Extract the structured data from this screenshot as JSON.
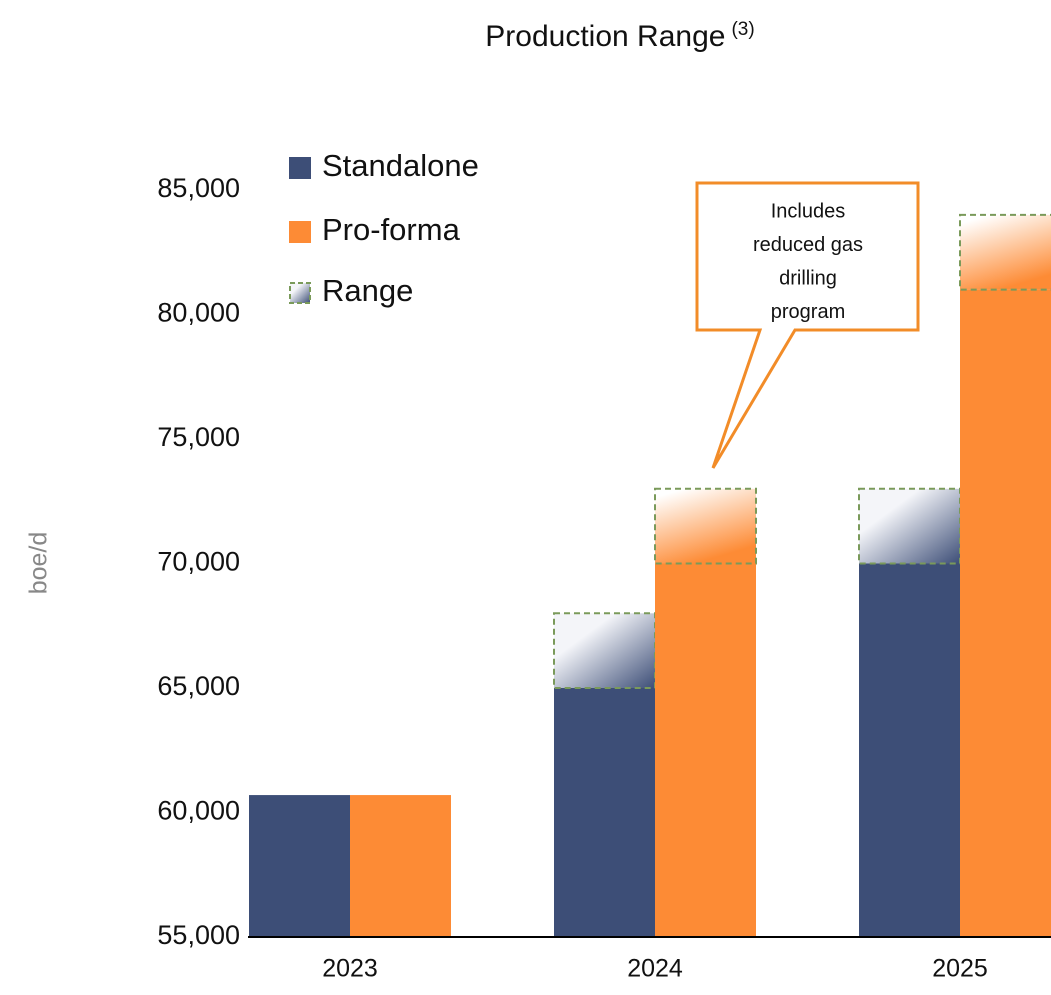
{
  "chart_data": {
    "type": "bar",
    "title": "Production Range",
    "title_note": "(3)",
    "ylabel": "boe/d",
    "categories": [
      "2023",
      "2024",
      "2025"
    ],
    "series": [
      {
        "name": "Standalone",
        "color": "#3d4e77",
        "values": [
          60700,
          65000,
          70000
        ]
      },
      {
        "name": "Pro-forma",
        "color": "#fd8b35",
        "values": [
          60700,
          70000,
          81000
        ]
      }
    ],
    "range": {
      "name": "Range",
      "color": "#7a9a5a",
      "values": [
        [
          null,
          3000,
          3000
        ],
        [
          null,
          3000,
          3000
        ]
      ]
    },
    "annotation": [
      "Includes",
      "reduced gas",
      "drilling",
      "program"
    ],
    "ylim": [
      55000,
      85000
    ],
    "yticks": [
      {
        "value": 55000,
        "label": "55,000"
      },
      {
        "value": 60000,
        "label": "60,000"
      },
      {
        "value": 65000,
        "label": "65,000"
      },
      {
        "value": 70000,
        "label": "70,000"
      },
      {
        "value": 75000,
        "label": "75,000"
      },
      {
        "value": 80000,
        "label": "80,000"
      },
      {
        "value": 85000,
        "label": "85,000"
      }
    ],
    "grid": false
  }
}
